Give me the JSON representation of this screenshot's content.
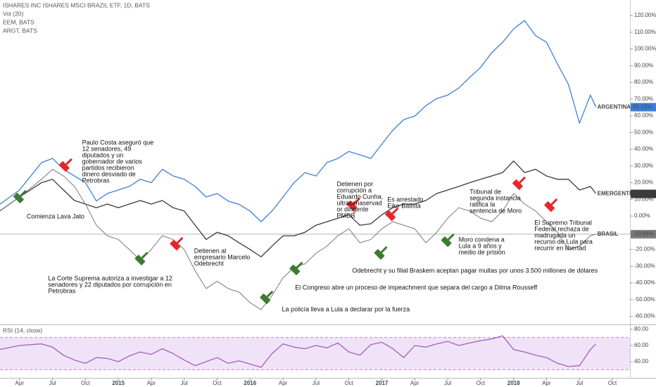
{
  "chart_data": [
    {
      "type": "line",
      "title": "ISHARES INC ISHARES MSCI BRAZIL ETF, 1D, BATS",
      "subtitles": [
        "Vol (20)",
        "EEM, BATS",
        "ARGT, BATS"
      ],
      "xlim": [
        1.22,
        58.6
      ],
      "ylim": [
        -64.4,
        129.3
      ],
      "yticks": [
        {
          "value": 120,
          "label": "120.00%"
        },
        {
          "value": 110,
          "label": "110.00%"
        },
        {
          "value": 100,
          "label": "100.00%"
        },
        {
          "value": 90,
          "label": "90.00%"
        },
        {
          "value": 80,
          "label": "80.00%"
        },
        {
          "value": 70,
          "label": "70.00%"
        },
        {
          "value": 60,
          "label": "60.00%"
        },
        {
          "value": 50,
          "label": "50.00%"
        },
        {
          "value": 40,
          "label": "40.00%"
        },
        {
          "value": 30,
          "label": "30.00%"
        },
        {
          "value": 20,
          "label": "20.00%"
        },
        {
          "value": 10,
          "label": "10.00%"
        },
        {
          "value": 0,
          "label": "0.00%"
        },
        {
          "value": -10,
          "label": "-10.00%"
        },
        {
          "value": -20,
          "label": "-20.00%"
        },
        {
          "value": -30,
          "label": "-30.00%"
        },
        {
          "value": -40,
          "label": "-40.00%"
        },
        {
          "value": -50,
          "label": "-50.00%"
        },
        {
          "value": -60,
          "label": "-60.00%"
        }
      ],
      "x": [
        1.2,
        3,
        5,
        6,
        7,
        8,
        9,
        10,
        11,
        12,
        13,
        14,
        15,
        16,
        17,
        18,
        19,
        20,
        21,
        22,
        23,
        24,
        25,
        26,
        27,
        28,
        29,
        30,
        31,
        32,
        33,
        34,
        35,
        36,
        37,
        38,
        39,
        40,
        41,
        42,
        43,
        44,
        45,
        46,
        47,
        48,
        49,
        50,
        51,
        52,
        53,
        54,
        55,
        55.5
      ],
      "series": [
        {
          "name": "ARGENTINA",
          "color": "#3d7fd9",
          "last_value": 65.15,
          "last_value_label": "65.15%",
          "values": [
            7,
            15.6,
            32,
            34.5,
            28,
            24,
            20,
            9,
            13.5,
            15.6,
            17.7,
            22,
            20,
            28,
            24,
            22,
            17.7,
            11.4,
            13.5,
            9,
            7,
            3,
            -3.4,
            3,
            11.4,
            20,
            26,
            24,
            32,
            34.5,
            38.7,
            36.6,
            34.5,
            43,
            51.4,
            57.7,
            59.8,
            66,
            70.3,
            72.4,
            76.6,
            83,
            89,
            97.7,
            104,
            112,
            117,
            108,
            104,
            91,
            78.7,
            55.6,
            72.4,
            65.2
          ]
        },
        {
          "name": "EMERGENTES",
          "color": "#3a3a3a",
          "last_value": 13.27,
          "last_value_label": "13.27%",
          "values": [
            3,
            11.4,
            20,
            22,
            15.6,
            9.3,
            7.2,
            5,
            7.2,
            5,
            7.2,
            9.3,
            7.2,
            9.3,
            5,
            3,
            -5.5,
            -14,
            -9.7,
            -11.8,
            -16,
            -20,
            -24.4,
            -18,
            -11.8,
            -11.8,
            -9.7,
            -5.5,
            -3.4,
            -1.3,
            0.8,
            -5.5,
            -4.6,
            0.8,
            5,
            7.2,
            7.2,
            9.3,
            13.5,
            15.6,
            17.7,
            20,
            22,
            24,
            26,
            33,
            26,
            28,
            24,
            22,
            22,
            15.6,
            17.7,
            13.5
          ]
        },
        {
          "name": "BRASIL",
          "color": "#7a7a7a",
          "last_value": -10.85,
          "last_value_label": "-10.85%",
          "values": [
            3,
            11.4,
            22,
            28,
            24,
            17.7,
            7.2,
            -5.5,
            -11.8,
            -14,
            -20,
            -26.5,
            -20,
            -11.8,
            -14,
            -20,
            -32.8,
            -43.4,
            -39,
            -43.4,
            -45.5,
            -51.8,
            -56,
            -47.6,
            -37,
            -30.7,
            -28.6,
            -22.3,
            -18,
            -11.8,
            -7.6,
            -16,
            -14,
            -7.6,
            -3.4,
            -5.5,
            -7.6,
            -16,
            -9.7,
            -1.3,
            5,
            3,
            -1.3,
            -3.4,
            3,
            13.5,
            7.2,
            3,
            -3.4,
            -9.7,
            -20,
            -18,
            -11.8,
            -10.9
          ]
        }
      ],
      "annotations": [
        {
          "lines": [
            "Comienza Lava Jato"
          ],
          "x": 3.14,
          "y": 9.3,
          "xytext": [
            3.65,
            1.3
          ],
          "color": "#3f7a32"
        },
        {
          "lines": [
            "Paulo Costa aseguró que",
            "12 senadores, 49",
            "diputados y un",
            "gobernador de varios",
            "partidos recibieron",
            "dinero desviado de",
            "Petrobras"
          ],
          "x": 7.3,
          "y": 28.2,
          "xytext": [
            8.7,
            45.5
          ],
          "color": "#e8262a"
        },
        {
          "lines": [
            "La Corte Suprema autoriza a investigar a 12",
            "senadores y 22 diputados por corrupción en",
            "Petrobras"
          ],
          "x": 14.2,
          "y": -27.8,
          "xytext": [
            5.6,
            -35.8
          ],
          "color": "#3f7a32"
        },
        {
          "lines": [
            "Detienen al",
            "empresario Marcelo",
            "Odebrecht"
          ],
          "x": 17.4,
          "y": -18.9,
          "xytext": [
            18.9,
            -19.4
          ],
          "color": "#e8262a"
        },
        {
          "lines": [
            "La policía lleva a Lula a declarar por la fuerza"
          ],
          "x": 25.6,
          "y": -51,
          "xytext": [
            26.9,
            -54.3
          ],
          "color": "#3f7a32"
        },
        {
          "lines": [
            "El Congreso abre un proceso de impeachment que separa del cargo a Dilma Rousseff"
          ],
          "x": 28.3,
          "y": -33.7,
          "xytext": [
            28.1,
            -41.3
          ],
          "color": "#3f7a32"
        },
        {
          "lines": [
            "Detienen por",
            "corrupción a",
            "Eduardo Cunha,",
            "ultraconaservad",
            "or dirigente",
            "PMDB"
          ],
          "x": 33.5,
          "y": 4.6,
          "xytext": [
            31.9,
            20.6
          ],
          "color": "#e8262a"
        },
        {
          "lines": [
            "Odebrecht y su filial Braskem aceptan pagar multas por unos 3.500 millones de dólares"
          ],
          "x": 36,
          "y": -24.4,
          "xytext": [
            33.3,
            -31.2
          ],
          "color": "#3f7a32"
        },
        {
          "lines": [
            "Es arrestado",
            "Eike Batista"
          ],
          "x": 37,
          "y": -1.3,
          "xytext": [
            36.5,
            11.4
          ],
          "color": "#e8262a"
        },
        {
          "lines": [
            "Moro condena a",
            "Lula a 9 años y",
            "medio de prisión"
          ],
          "x": 42.1,
          "y": -16.8,
          "xytext": [
            43,
            -12.6
          ],
          "color": "#3f7a32"
        },
        {
          "lines": [
            "Tribunal de",
            "segunda instancia",
            "ratifica la",
            "sentencia de Moro"
          ],
          "x": 48.6,
          "y": 17.3,
          "xytext": [
            44,
            16
          ],
          "color": "#e8262a"
        },
        {
          "lines": [
            "El Supremo Tribunal",
            "Federal rechaza de",
            "madrugada un",
            "recurso de Lula para",
            "recurrir en libertad"
          ],
          "x": 51.5,
          "y": 4.2,
          "xytext": [
            49.9,
            -2.5
          ],
          "color": "#e8262a"
        }
      ]
    },
    {
      "type": "line",
      "title": "RSI (14, close)",
      "xlim": [
        1.22,
        58.6
      ],
      "ylim": [
        21.7,
        85.2
      ],
      "band": [
        30,
        70
      ],
      "yticks": [
        {
          "value": 80,
          "label": "80.00"
        },
        {
          "value": 60,
          "label": "60.00"
        },
        {
          "value": 40,
          "label": "40.00"
        }
      ],
      "xticks": [
        {
          "value": 3,
          "label": "Apr"
        },
        {
          "value": 6,
          "label": "Jul"
        },
        {
          "value": 9,
          "label": "Oct"
        },
        {
          "value": 12,
          "label": "2015"
        },
        {
          "value": 15,
          "label": "Apr"
        },
        {
          "value": 18,
          "label": "Jul"
        },
        {
          "value": 21,
          "label": "Oct"
        },
        {
          "value": 24,
          "label": "2016"
        },
        {
          "value": 27,
          "label": "Apr"
        },
        {
          "value": 30,
          "label": "Jul"
        },
        {
          "value": 33,
          "label": "Oct"
        },
        {
          "value": 36,
          "label": "2017"
        },
        {
          "value": 39,
          "label": "Apr"
        },
        {
          "value": 42,
          "label": "Jul"
        },
        {
          "value": 45,
          "label": "Oct"
        },
        {
          "value": 48,
          "label": "2018"
        },
        {
          "value": 51,
          "label": "Apr"
        },
        {
          "value": 54,
          "label": "Jul"
        },
        {
          "value": 57,
          "label": "Oct"
        }
      ],
      "x": [
        1.2,
        3,
        5,
        6,
        7,
        8,
        9,
        10,
        11,
        12,
        13,
        14,
        15,
        16,
        17,
        18,
        19,
        20,
        21,
        22,
        23,
        24,
        25,
        26,
        27,
        28,
        29,
        30,
        31,
        32,
        33,
        34,
        35,
        36,
        37,
        38,
        39,
        40,
        41,
        42,
        43,
        44,
        45,
        46,
        47,
        48,
        49,
        50,
        51,
        52,
        53,
        54,
        55,
        55.5
      ],
      "series": [
        {
          "color": "#a35dc4",
          "values": [
            55,
            60,
            62,
            58,
            48,
            42,
            38,
            45,
            44,
            40,
            47,
            52,
            49,
            56,
            50,
            42,
            35,
            40,
            45,
            38,
            41,
            37,
            33,
            50,
            62,
            58,
            56,
            60,
            57,
            63,
            52,
            48,
            61,
            64,
            56,
            45,
            60,
            58,
            62,
            65,
            60,
            63,
            66,
            68,
            72,
            55,
            52,
            48,
            45,
            38,
            34,
            35,
            55,
            62
          ]
        }
      ]
    }
  ]
}
